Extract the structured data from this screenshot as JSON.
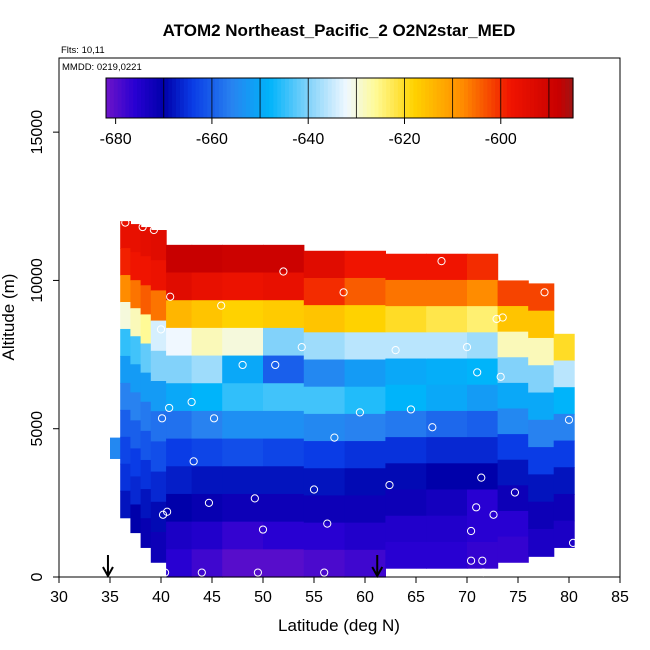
{
  "chart_data": {
    "type": "heatmap",
    "title": "ATOM2 Northeast_Pacific_2 O2N2star_MED",
    "flights_label": "Flts: 10,11",
    "dates_label": "MMDD: 0219,0221",
    "xlabel": "Latitude (deg N)",
    "ylabel": "Altitude (m)",
    "xlim": [
      30,
      85
    ],
    "ylim": [
      0,
      17500
    ],
    "x_ticks": [
      "30",
      "35",
      "40",
      "45",
      "50",
      "55",
      "60",
      "65",
      "70",
      "75",
      "80",
      "85"
    ],
    "y_ticks": [
      "0",
      "5000",
      "10000",
      "15000"
    ],
    "colorbar": {
      "range": [
        -682,
        -585
      ],
      "ticks": [
        "-680",
        "-660",
        "-640",
        "-620",
        "-600"
      ]
    },
    "grid": false,
    "legend": "colorbar at top, inside plot",
    "markers": {
      "arrow_latitudes": [
        34.8,
        61.2
      ],
      "sample_points": [
        [
          36.5,
          11950
        ],
        [
          38.2,
          11800
        ],
        [
          39.3,
          11700
        ],
        [
          40.9,
          9450
        ],
        [
          45.9,
          9150
        ],
        [
          52.0,
          10300
        ],
        [
          57.9,
          9600
        ],
        [
          67.5,
          10650
        ],
        [
          77.6,
          9600
        ],
        [
          72.9,
          8700
        ],
        [
          73.5,
          8750
        ],
        [
          40.0,
          8350
        ],
        [
          53.8,
          7750
        ],
        [
          48.0,
          7150
        ],
        [
          51.2,
          7150
        ],
        [
          63.0,
          7650
        ],
        [
          70.0,
          7750
        ],
        [
          71.0,
          6900
        ],
        [
          73.3,
          6750
        ],
        [
          43.0,
          5900
        ],
        [
          40.8,
          5700
        ],
        [
          40.1,
          5350
        ],
        [
          45.2,
          5350
        ],
        [
          59.5,
          5550
        ],
        [
          64.5,
          5650
        ],
        [
          66.6,
          5050
        ],
        [
          57.0,
          4700
        ],
        [
          80.0,
          5300
        ],
        [
          43.2,
          3900
        ],
        [
          62.4,
          3100
        ],
        [
          55.0,
          2950
        ],
        [
          71.4,
          3350
        ],
        [
          74.7,
          2850
        ],
        [
          49.2,
          2650
        ],
        [
          44.7,
          2500
        ],
        [
          40.6,
          2200
        ],
        [
          40.2,
          2100
        ],
        [
          70.9,
          2350
        ],
        [
          72.6,
          2100
        ],
        [
          56.3,
          1800
        ],
        [
          50.0,
          1600
        ],
        [
          70.4,
          1550
        ],
        [
          80.4,
          1150
        ],
        [
          70.4,
          550
        ],
        [
          71.5,
          550
        ],
        [
          71.6,
          150
        ],
        [
          40.4,
          150
        ],
        [
          44.0,
          150
        ],
        [
          49.5,
          150
        ],
        [
          56.0,
          150
        ]
      ]
    },
    "profile_columns": [
      {
        "lat": [
          35.0,
          36.0
        ],
        "top": 4700,
        "bottom": 4000,
        "v": [
          -655
        ]
      },
      {
        "lat": [
          36.0,
          37.0
        ],
        "top": 12000,
        "bottom": 2000,
        "v": [
          -596,
          -599,
          -608,
          -630,
          -645,
          -652,
          -656,
          -660,
          -663,
          -665,
          -668
        ]
      },
      {
        "lat": [
          37.0,
          38.0
        ],
        "top": 11900,
        "bottom": 1500,
        "v": [
          -596,
          -598,
          -606,
          -628,
          -644,
          -652,
          -656,
          -660,
          -664,
          -666,
          -670
        ]
      },
      {
        "lat": [
          38.0,
          39.0
        ],
        "top": 11800,
        "bottom": 1000,
        "v": [
          -595,
          -598,
          -604,
          -626,
          -642,
          -652,
          -657,
          -661,
          -665,
          -668,
          -671
        ]
      },
      {
        "lat": [
          39.0,
          40.5
        ],
        "top": 11700,
        "bottom": 500,
        "v": [
          -594,
          -597,
          -606,
          -634,
          -640,
          -652,
          -658,
          -662,
          -666,
          -669,
          -672
        ]
      },
      {
        "lat": [
          40.5,
          43.0
        ],
        "top": 11200,
        "bottom": 0,
        "v": [
          -588,
          -594,
          -614,
          -632,
          -640,
          -650,
          -658,
          -664,
          -667,
          -670,
          -674,
          -676
        ]
      },
      {
        "lat": [
          43.0,
          46.0
        ],
        "top": 11200,
        "bottom": 0,
        "v": [
          -588,
          -596,
          -616,
          -628,
          -638,
          -648,
          -656,
          -663,
          -668,
          -671,
          -675,
          -678
        ]
      },
      {
        "lat": [
          46.0,
          50.0
        ],
        "top": 11200,
        "bottom": 0,
        "v": [
          -589,
          -597,
          -618,
          -630,
          -650,
          -645,
          -654,
          -662,
          -668,
          -672,
          -677,
          -680
        ]
      },
      {
        "lat": [
          50.0,
          54.0
        ],
        "top": 11200,
        "bottom": 0,
        "v": [
          -589,
          -596,
          -617,
          -640,
          -660,
          -644,
          -654,
          -663,
          -668,
          -672,
          -676,
          -680
        ]
      },
      {
        "lat": [
          54.0,
          58.0
        ],
        "top": 11000,
        "bottom": 0,
        "v": [
          -594,
          -600,
          -616,
          -638,
          -655,
          -644,
          -655,
          -664,
          -668,
          -672,
          -676,
          -679
        ]
      },
      {
        "lat": [
          58.0,
          62.0
        ],
        "top": 11000,
        "bottom": 0,
        "v": [
          -598,
          -604,
          -618,
          -636,
          -652,
          -646,
          -656,
          -665,
          -669,
          -672,
          -675,
          -678
        ]
      },
      {
        "lat": [
          62.0,
          66.0
        ],
        "top": 10900,
        "bottom": 300,
        "v": [
          -598,
          -606,
          -620,
          -636,
          -650,
          -648,
          -657,
          -665,
          -669,
          -672,
          -675,
          -676
        ]
      },
      {
        "lat": [
          66.0,
          70.0
        ],
        "top": 10900,
        "bottom": 300,
        "v": [
          -598,
          -606,
          -622,
          -636,
          -649,
          -650,
          -659,
          -666,
          -670,
          -673,
          -675,
          -676
        ]
      },
      {
        "lat": [
          70.0,
          73.0
        ],
        "top": 10900,
        "bottom": 300,
        "v": [
          -600,
          -608,
          -624,
          -638,
          -648,
          -652,
          -660,
          -666,
          -670,
          -676,
          -676,
          -677
        ]
      },
      {
        "lat": [
          73.0,
          76.0
        ],
        "top": 10000,
        "bottom": 500,
        "v": [
          -602,
          -616,
          -628,
          -640,
          -650,
          -655,
          -664,
          -668,
          -672,
          -676,
          -677
        ]
      },
      {
        "lat": [
          76.0,
          78.5
        ],
        "top": 9900,
        "bottom": 700,
        "v": [
          -602,
          -616,
          -628,
          -640,
          -650,
          -656,
          -664,
          -668,
          -672,
          -674
        ]
      },
      {
        "lat": [
          78.5,
          80.5
        ],
        "top": 8200,
        "bottom": 1000,
        "v": [
          -620,
          -636,
          -648,
          -656,
          -664,
          -668,
          -672,
          -674
        ]
      }
    ]
  }
}
